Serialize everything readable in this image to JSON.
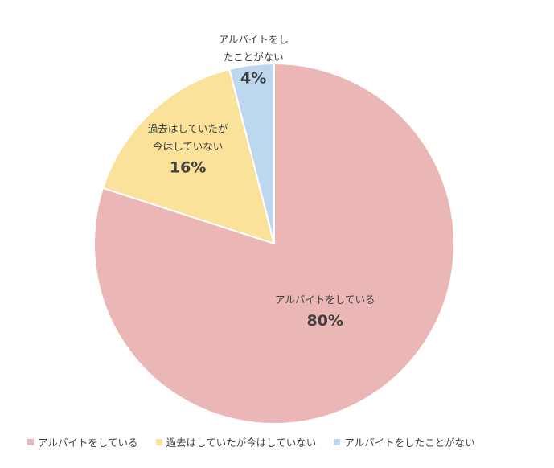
{
  "chart_data": {
    "type": "pie",
    "title": "",
    "categories": [
      "アルバイトをしている",
      "過去はしていたが今はしていない",
      "アルバイトをしたことがない"
    ],
    "values": [
      80,
      16,
      4
    ],
    "value_labels": [
      "80%",
      "16%",
      "4%"
    ],
    "slice_label_lines": [
      [
        "アルバイトをしている"
      ],
      [
        "過去はしていたが",
        "今はしていない"
      ],
      [
        "アルバイトをし",
        "たことがない"
      ]
    ],
    "colors": [
      "#ebb6b6",
      "#fbe29a",
      "#bdd7ee"
    ],
    "start_angle": "12 o'clock",
    "direction": "clockwise",
    "legend_position": "bottom"
  }
}
